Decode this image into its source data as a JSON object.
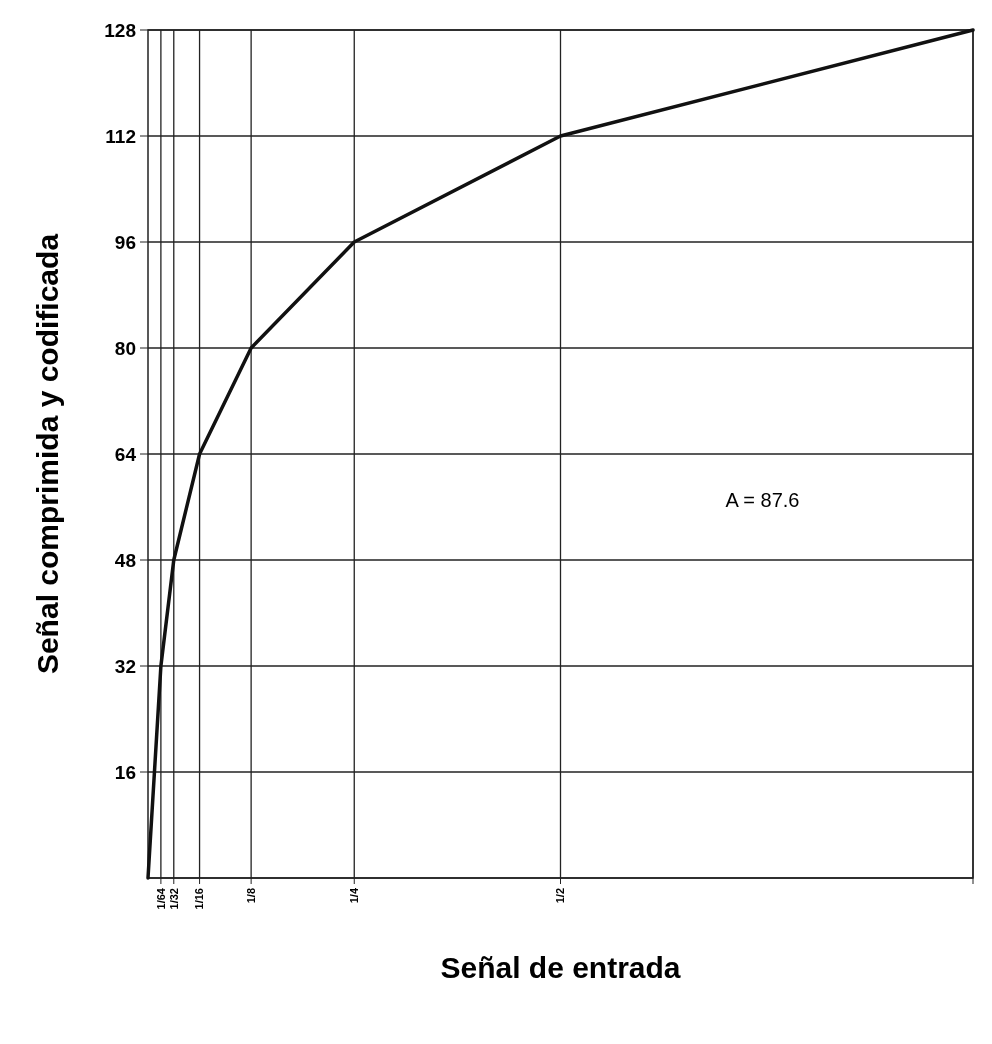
{
  "chart_data": {
    "type": "line",
    "xlabel": "Señal de entrada",
    "ylabel": "Señal comprimida y codificada",
    "x": [
      0,
      0.015625,
      0.03125,
      0.0625,
      0.125,
      0.25,
      0.5,
      1
    ],
    "series": [
      {
        "color": "#111111",
        "values": [
          0,
          32,
          48,
          64,
          80,
          96,
          112,
          128
        ]
      }
    ],
    "xlim": [
      0,
      1
    ],
    "xticks": [
      {
        "value": 0.015625,
        "label": "1/64"
      },
      {
        "value": 0.03125,
        "label": "1/32"
      },
      {
        "value": 0.0625,
        "label": "1/16"
      },
      {
        "value": 0.125,
        "label": "1/8"
      },
      {
        "value": 0.25,
        "label": "1/4"
      },
      {
        "value": 0.5,
        "label": "1/2"
      },
      {
        "value": 1,
        "label": null
      }
    ],
    "ylim": [
      0,
      128
    ],
    "yticks": [
      16,
      32,
      48,
      64,
      80,
      96,
      112,
      128
    ],
    "grid": true,
    "marker": "none",
    "line_style": "solid",
    "annotations": [
      "A = 87.6"
    ]
  }
}
